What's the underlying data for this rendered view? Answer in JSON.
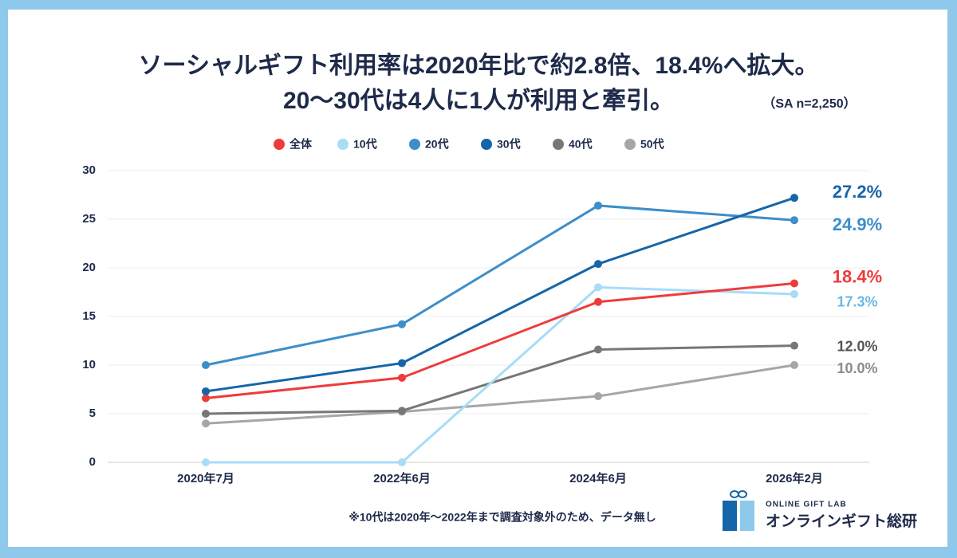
{
  "chart_data": {
    "type": "line",
    "title": "ソーシャルギフト利用率は2020年比で約2.8倍、18.4%へ拡大。",
    "subtitle": "20〜30代は4人に1人が利用と牽引。",
    "sample_note": "（SA n=2,250）",
    "footnote": "※10代は2020年〜2022年まで調査対象外のため、データ無し",
    "brand_en": "ONLINE GIFT LAB",
    "brand_ja": "オンラインギフト総研",
    "categories": [
      "2020年7月",
      "2022年6月",
      "2024年6月",
      "2026年2月"
    ],
    "series": [
      {
        "name": "全体",
        "color": "#ef3b3b",
        "values": [
          6.6,
          8.7,
          16.5,
          18.4
        ],
        "value_labels": [
          null,
          null,
          null,
          "18.4%"
        ]
      },
      {
        "name": "10代",
        "color": "#a8dcf7",
        "values": [
          0,
          0,
          18.0,
          17.3
        ],
        "value_labels": [
          null,
          null,
          null,
          "17.3%"
        ]
      },
      {
        "name": "20代",
        "color": "#3d8ec9",
        "values": [
          10.0,
          14.2,
          26.4,
          24.9
        ],
        "value_labels": [
          null,
          null,
          null,
          "24.9%"
        ]
      },
      {
        "name": "30代",
        "color": "#1565a8",
        "values": [
          7.3,
          10.2,
          20.4,
          27.2
        ],
        "value_labels": [
          null,
          null,
          null,
          "27.2%"
        ]
      },
      {
        "name": "40代",
        "color": "#777777",
        "values": [
          5.0,
          5.3,
          11.6,
          12.0
        ],
        "value_labels": [
          null,
          null,
          null,
          "12.0%"
        ]
      },
      {
        "name": "50代",
        "color": "#a6a6a6",
        "values": [
          4.0,
          5.2,
          6.8,
          10.0
        ],
        "value_labels": [
          null,
          null,
          null,
          "10.0%"
        ]
      }
    ],
    "ylim": [
      0,
      30
    ],
    "yticks": [
      0,
      5,
      10,
      15,
      20,
      25,
      30
    ],
    "grid": true,
    "legend": "top"
  }
}
